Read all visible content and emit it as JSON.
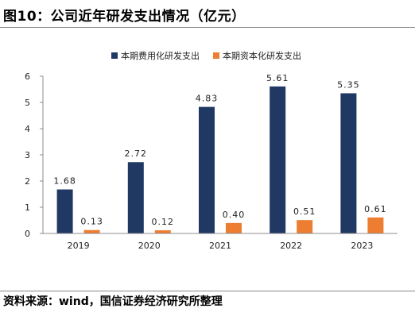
{
  "figure": {
    "title": "图10：公司近年研发支出情况（亿元）",
    "source": "资料来源：wind，国信证券经济研究所整理"
  },
  "chart_data": {
    "type": "bar",
    "categories": [
      "2019",
      "2020",
      "2021",
      "2022",
      "2023"
    ],
    "series": [
      {
        "name": "本期费用化研发支出",
        "values": [
          1.68,
          2.72,
          4.83,
          5.61,
          5.35
        ],
        "labels": [
          "1.68",
          "2.72",
          "4.83",
          "5.61",
          "5.35"
        ],
        "color": "#203864"
      },
      {
        "name": "本期资本化研发支出",
        "values": [
          0.13,
          0.12,
          0.4,
          0.51,
          0.61
        ],
        "labels": [
          "0.13",
          "0.12",
          "0.40",
          "0.51",
          "0.61"
        ],
        "color": "#ED7D31"
      }
    ],
    "ylim": [
      0,
      6
    ],
    "yticks": [
      "0",
      "1",
      "2",
      "3",
      "4",
      "5",
      "6"
    ],
    "legend_position": "top-center",
    "grid": false
  }
}
